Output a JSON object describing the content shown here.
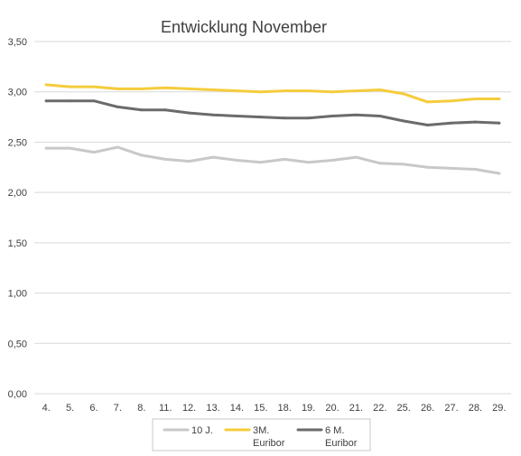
{
  "chart_data": {
    "type": "line",
    "title": "Entwicklung November",
    "xlabel": "",
    "ylabel": "",
    "ylim": [
      0,
      3.5
    ],
    "yticks": [
      "0,00",
      "0,50",
      "1,00",
      "1,50",
      "2,00",
      "2,50",
      "3,00",
      "3,50"
    ],
    "grid": true,
    "legend_position": "bottom",
    "categories": [
      "4.",
      "5.",
      "6.",
      "7.",
      "8.",
      "11.",
      "12.",
      "13.",
      "14.",
      "15.",
      "18.",
      "19.",
      "20.",
      "21.",
      "22.",
      "25.",
      "26.",
      "27.",
      "28.",
      "29."
    ],
    "series": [
      {
        "name": "10 J.",
        "legend_lines": [
          "10 J."
        ],
        "color": "#c8c8c8",
        "values": [
          2.44,
          2.44,
          2.4,
          2.45,
          2.37,
          2.33,
          2.31,
          2.35,
          2.32,
          2.3,
          2.33,
          2.3,
          2.32,
          2.35,
          2.29,
          2.28,
          2.25,
          2.24,
          2.23,
          2.19
        ]
      },
      {
        "name": "3M. Euribor",
        "legend_lines": [
          "3M.",
          "Euribor"
        ],
        "color": "#f5cc3c",
        "values": [
          3.07,
          3.05,
          3.05,
          3.03,
          3.03,
          3.04,
          3.03,
          3.02,
          3.01,
          3.0,
          3.01,
          3.01,
          3.0,
          3.01,
          3.02,
          2.98,
          2.9,
          2.91,
          2.93,
          2.93
        ]
      },
      {
        "name": "6 M. Euribor",
        "legend_lines": [
          "6 M.",
          "Euribor"
        ],
        "color": "#6b6b6b",
        "values": [
          2.91,
          2.91,
          2.91,
          2.85,
          2.82,
          2.82,
          2.79,
          2.77,
          2.76,
          2.75,
          2.74,
          2.74,
          2.76,
          2.77,
          2.76,
          2.71,
          2.67,
          2.69,
          2.7,
          2.69
        ]
      }
    ]
  }
}
